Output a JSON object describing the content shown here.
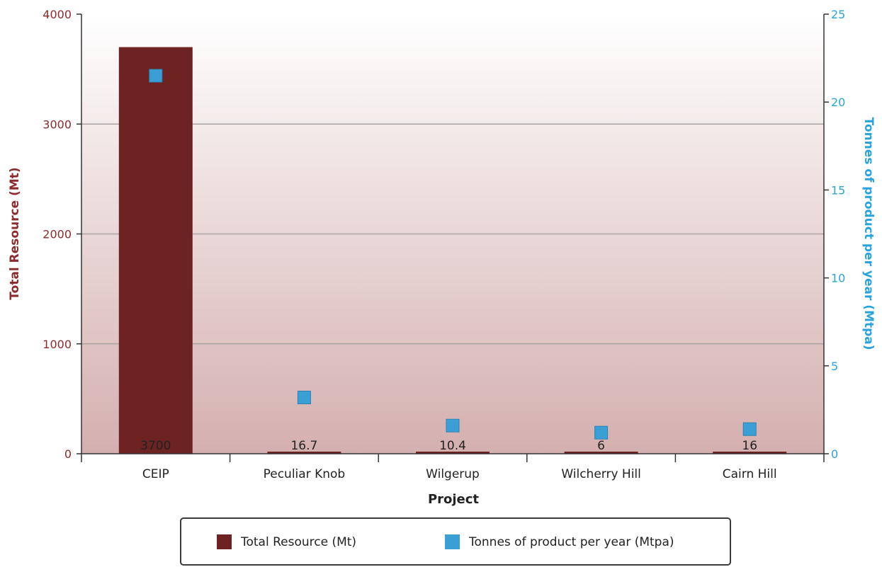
{
  "colors": {
    "bar": "#6e2323",
    "marker": "#3a9fd4",
    "left_axis_text": "#8b2b2b",
    "right_axis_text": "#29a3dc",
    "plot_bg_top": "#ffffff",
    "plot_bg_bottom": "#d4afaf",
    "grid": "#a9a2a2"
  },
  "chart_data": {
    "type": "bar",
    "categories": [
      "CEIP",
      "Peculiar Knob",
      "Wilgerup",
      "Wilcherry Hill",
      "Cairn Hill"
    ],
    "xlabel": "Project",
    "ylabel": "Total Resource (Mt)",
    "y2label": "Tonnes of product per year (Mtpa)",
    "ylim": [
      0,
      4000
    ],
    "y2lim": [
      0,
      25
    ],
    "yticks": [
      "0",
      "1000",
      "2000",
      "3000",
      "4000"
    ],
    "y2ticks": [
      "0",
      "5",
      "10",
      "15",
      "20",
      "25"
    ],
    "grid": true,
    "legend_position": "bottom",
    "series": [
      {
        "name": "Total Resource (Mt)",
        "kind": "bar",
        "axis": "left",
        "values": [
          3700,
          16.7,
          10.4,
          6,
          16
        ],
        "labels": [
          "3700",
          "16.7",
          "10.4",
          "6",
          "16"
        ]
      },
      {
        "name": "Tonnes of product per year (Mtpa)",
        "kind": "marker",
        "axis": "right",
        "values": [
          21.5,
          3.2,
          1.6,
          1.2,
          1.4
        ]
      }
    ]
  }
}
